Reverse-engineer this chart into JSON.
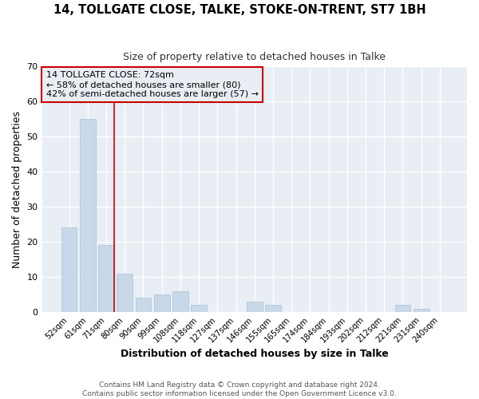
{
  "title": "14, TOLLGATE CLOSE, TALKE, STOKE-ON-TRENT, ST7 1BH",
  "subtitle": "Size of property relative to detached houses in Talke",
  "xlabel": "Distribution of detached houses by size in Talke",
  "ylabel": "Number of detached properties",
  "bar_color": "#c8d8e8",
  "bar_edge_color": "#b0c8dc",
  "plot_bg_color": "#e8eef4",
  "fig_bg_color": "#ffffff",
  "grid_color": "#ffffff",
  "annotation_box_edge_color": "#cc0000",
  "annotation_text_line1": "14 TOLLGATE CLOSE: 72sqm",
  "annotation_text_line2": "← 58% of detached houses are smaller (80)",
  "annotation_text_line3": "42% of semi-detached houses are larger (57) →",
  "bin_labels": [
    "52sqm",
    "61sqm",
    "71sqm",
    "80sqm",
    "90sqm",
    "99sqm",
    "108sqm",
    "118sqm",
    "127sqm",
    "137sqm",
    "146sqm",
    "155sqm",
    "165sqm",
    "174sqm",
    "184sqm",
    "193sqm",
    "202sqm",
    "212sqm",
    "221sqm",
    "231sqm",
    "240sqm"
  ],
  "bar_heights": [
    24,
    55,
    19,
    11,
    4,
    5,
    6,
    2,
    0,
    0,
    3,
    2,
    0,
    0,
    0,
    0,
    0,
    0,
    2,
    1,
    0
  ],
  "red_line_bar_index": 2,
  "ylim": [
    0,
    70
  ],
  "yticks": [
    0,
    10,
    20,
    30,
    40,
    50,
    60,
    70
  ],
  "footer_text": "Contains HM Land Registry data © Crown copyright and database right 2024.\nContains public sector information licensed under the Open Government Licence v3.0."
}
